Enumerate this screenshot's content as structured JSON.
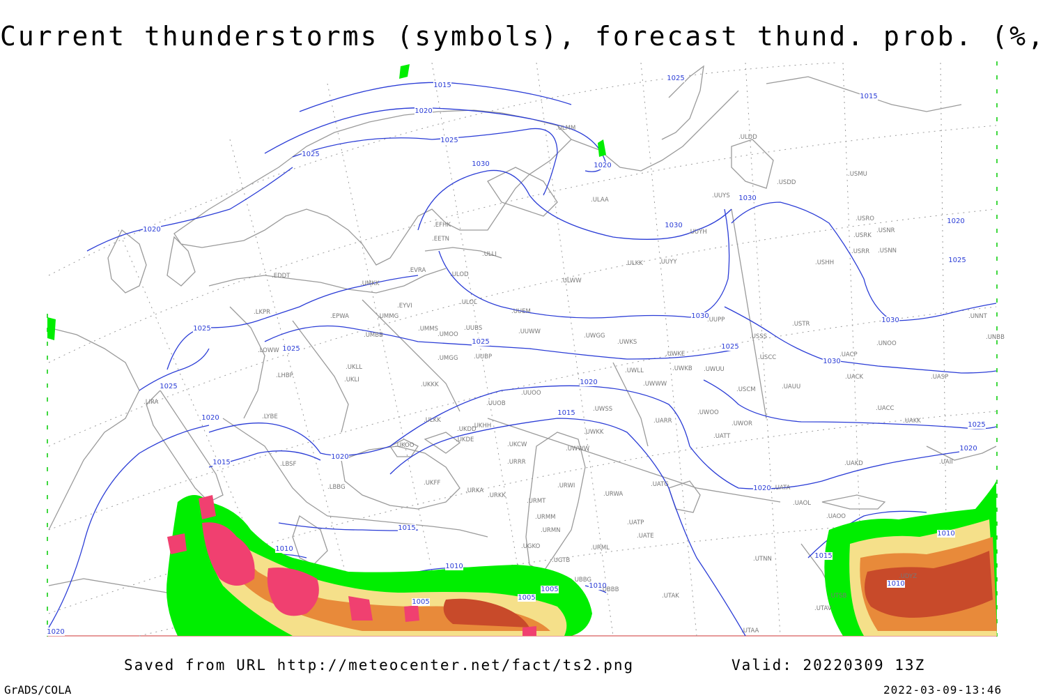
{
  "title": "Current thunderstorms (symbols), forecast thund. prob. (%, shaded)",
  "footer": {
    "saved_from": "Saved from URL http://meteocenter.net/fact/ts2.png",
    "valid": "Valid: 20220309 13Z",
    "brand": "GrADS/COLA",
    "timestamp": "2022-03-09-13:46"
  },
  "colors": {
    "isobar": "#2a3cd6",
    "coast": "#9a9a9a",
    "grid": "#9a9a9a",
    "prob_low": "#00ee00",
    "prob_mid": "#f5e08a",
    "prob_high": "#e88a3a",
    "prob_max": "#c84a2a",
    "storm_symbol": "#f04070"
  },
  "isobar_labels": [
    {
      "text": "1015"
    },
    {
      "text": "1020"
    },
    {
      "text": "1025"
    },
    {
      "text": "1025"
    },
    {
      "text": "1030"
    },
    {
      "text": "1020"
    },
    {
      "text": "1025"
    },
    {
      "text": "1015"
    },
    {
      "text": "1030"
    },
    {
      "text": "1020"
    },
    {
      "text": "1030"
    },
    {
      "text": "1025"
    },
    {
      "text": "1030"
    },
    {
      "text": "1030"
    },
    {
      "text": "1030"
    },
    {
      "text": "1020"
    },
    {
      "text": "1025"
    },
    {
      "text": "1025"
    },
    {
      "text": "1025"
    },
    {
      "text": "1025"
    },
    {
      "text": "1025"
    },
    {
      "text": "1020"
    },
    {
      "text": "1020"
    },
    {
      "text": "1015"
    },
    {
      "text": "1015"
    },
    {
      "text": "1020"
    },
    {
      "text": "1020"
    },
    {
      "text": "1010"
    },
    {
      "text": "1015"
    },
    {
      "text": "1010"
    },
    {
      "text": "1005"
    },
    {
      "text": "1005"
    },
    {
      "text": "1005"
    },
    {
      "text": "1010"
    },
    {
      "text": "1015"
    },
    {
      "text": "1010"
    },
    {
      "text": "1010"
    },
    {
      "text": "1020"
    },
    {
      "text": "1020"
    },
    {
      "text": "1025"
    }
  ],
  "stations": [
    "ULMM",
    "ULDD",
    "UUYS",
    "USDD",
    "USMU",
    "ULAA",
    "USRO",
    "USRK",
    "USNR",
    "USRR",
    "USNN",
    "UUYH",
    "ULKK",
    "UUYY",
    "USHH",
    "EFHK",
    "EETN",
    "ULLI",
    "ULOD",
    "ULWW",
    "EVRA",
    "EDDT",
    "UMKK",
    "EYVI",
    "ULOL",
    "UUEM",
    "UUPP",
    "USTR",
    "UNNT",
    "EPWA",
    "UMMG",
    "UMMS",
    "UUBS",
    "UMOO",
    "UUWW",
    "UWGG",
    "UWKS",
    "USSS",
    "UNOO",
    "UNBB",
    "UMBB",
    "UKLL",
    "UUBP",
    "UMGG",
    "UWKE",
    "UWKB",
    "UWUU",
    "USCC",
    "UACP",
    "UKLI",
    "UKKK",
    "UWLL",
    "UWWW",
    "USCM",
    "UAUU",
    "UACK",
    "UASP",
    "LKPR",
    "LOWW",
    "LHBP",
    "UUOO",
    "UUOB",
    "UWSS",
    "UWOO",
    "UACC",
    "UAKK",
    "LIRA",
    "LYBE",
    "UKHH",
    "UKDD",
    "UKDE",
    "UARR",
    "UWOR",
    "ULKK",
    "UKOO",
    "UKCW",
    "UWKK",
    "UATT",
    "UAII",
    "UAKD",
    "LBSF",
    "URRR",
    "UWWW",
    "UKFF",
    "URWI",
    "UATG",
    "LBBG",
    "URKA",
    "URKK",
    "URMT",
    "URWA",
    "UATA",
    "UAOL",
    "UAOO",
    "URMM",
    "URMN",
    "UATP",
    "UATE",
    "UGKO",
    "URML",
    "UTNN",
    "UBBB",
    "UTAK",
    "UTSB",
    "UTAV",
    "UTAA",
    "UGTB",
    "UDYZ",
    "UBBG"
  ]
}
